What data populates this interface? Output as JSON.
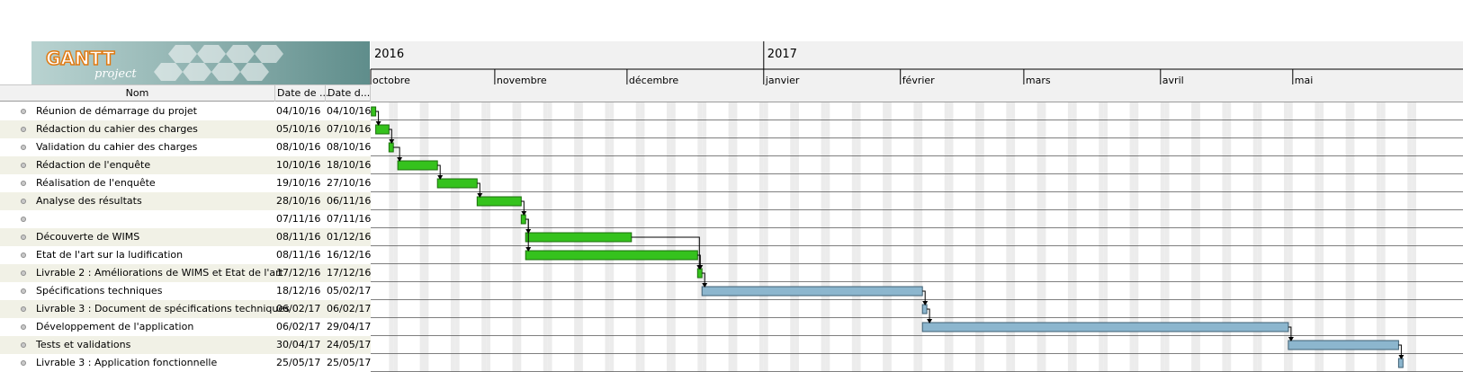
{
  "logo": {
    "brand": "GANTT",
    "sub": "project"
  },
  "columns": {
    "name": "Nom",
    "start": "Date de ...",
    "end": "Date d..."
  },
  "tasks": [
    {
      "name": "Réunion de démarrage du projet",
      "start": "04/10/16",
      "end": "04/10/16"
    },
    {
      "name": "Rédaction du cahier des charges",
      "start": "05/10/16",
      "end": "07/10/16"
    },
    {
      "name": "Validation du cahier des charges",
      "start": "08/10/16",
      "end": "08/10/16"
    },
    {
      "name": "Rédaction de l'enquête",
      "start": "10/10/16",
      "end": "18/10/16"
    },
    {
      "name": "Réalisation de l'enquête",
      "start": "19/10/16",
      "end": "27/10/16"
    },
    {
      "name": "Analyse des résultats",
      "start": "28/10/16",
      "end": "06/11/16"
    },
    {
      "name": "",
      "start": "07/11/16",
      "end": "07/11/16"
    },
    {
      "name": "Découverte de WIMS",
      "start": "08/11/16",
      "end": "01/12/16"
    },
    {
      "name": "Etat de l'art sur la ludification",
      "start": "08/11/16",
      "end": "16/12/16"
    },
    {
      "name": "Livrable 2 : Améliorations de WIMS et Etat de l'art",
      "start": "17/12/16",
      "end": "17/12/16"
    },
    {
      "name": "Spécifications techniques",
      "start": "18/12/16",
      "end": "05/02/17"
    },
    {
      "name": "Livrable 3 : Document de spécifications techniques",
      "start": "06/02/17",
      "end": "06/02/17"
    },
    {
      "name": "Développement de l'application",
      "start": "06/02/17",
      "end": "29/04/17"
    },
    {
      "name": "Tests et validations",
      "start": "30/04/17",
      "end": "24/05/17"
    },
    {
      "name": "Livrable 3 : Application fonctionnelle",
      "start": "25/05/17",
      "end": "25/05/17"
    }
  ],
  "chart_data": {
    "type": "gantt",
    "years": [
      "2016",
      "2017"
    ],
    "months": [
      "octobre",
      "novembre",
      "décembre",
      "janvier",
      "février",
      "mars",
      "avril",
      "mai"
    ],
    "range": {
      "start": "2016-10-01",
      "end": "2017-05-31"
    },
    "colors": {
      "done": "#35c21d",
      "done_border": "#1a6e0b",
      "todo": "#8cb6ce",
      "todo_border": "#3e5f73",
      "weekend": "#ececec",
      "row_alt": "#f1f1e6",
      "arrow": "#000000"
    },
    "tasks": [
      {
        "start": "2016-10-04",
        "end": "2016-10-05",
        "status": "done"
      },
      {
        "start": "2016-10-05",
        "end": "2016-10-08",
        "status": "done"
      },
      {
        "start": "2016-10-08",
        "end": "2016-10-09",
        "status": "done"
      },
      {
        "start": "2016-10-10",
        "end": "2016-10-19",
        "status": "done"
      },
      {
        "start": "2016-10-19",
        "end": "2016-10-28",
        "status": "done"
      },
      {
        "start": "2016-10-28",
        "end": "2016-11-07",
        "status": "done"
      },
      {
        "start": "2016-11-07",
        "end": "2016-11-08",
        "status": "done"
      },
      {
        "start": "2016-11-08",
        "end": "2016-12-02",
        "status": "done"
      },
      {
        "start": "2016-11-08",
        "end": "2016-12-17",
        "status": "done"
      },
      {
        "start": "2016-12-17",
        "end": "2016-12-18",
        "status": "done"
      },
      {
        "start": "2016-12-18",
        "end": "2017-02-06",
        "status": "todo"
      },
      {
        "start": "2017-02-06",
        "end": "2017-02-07",
        "status": "todo"
      },
      {
        "start": "2017-02-06",
        "end": "2017-04-30",
        "status": "todo"
      },
      {
        "start": "2017-04-30",
        "end": "2017-05-25",
        "status": "todo"
      },
      {
        "start": "2017-05-25",
        "end": "2017-05-26",
        "status": "todo"
      }
    ],
    "dependencies": [
      [
        0,
        1
      ],
      [
        1,
        2
      ],
      [
        2,
        3
      ],
      [
        3,
        4
      ],
      [
        4,
        5
      ],
      [
        5,
        6
      ],
      [
        6,
        7
      ],
      [
        6,
        8
      ],
      [
        7,
        9
      ],
      [
        8,
        9
      ],
      [
        9,
        10
      ],
      [
        10,
        11
      ],
      [
        11,
        12
      ],
      [
        12,
        13
      ],
      [
        13,
        14
      ]
    ]
  }
}
